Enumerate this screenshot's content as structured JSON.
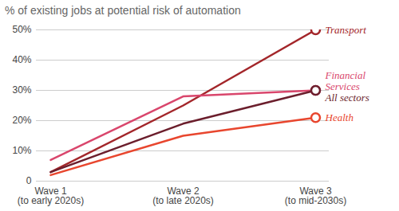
{
  "chart_data": {
    "type": "line",
    "title": "% of existing jobs at potential risk of automation",
    "categories": [
      "Wave 1\n(to early 2020s)",
      "Wave 2\n(to late 2020s)",
      "Wave 3\n(to mid-2030s)"
    ],
    "series": [
      {
        "name": "Transport",
        "color": "#a3262a",
        "values": [
          3,
          25,
          50
        ]
      },
      {
        "name": "Financial\nServices",
        "color": "#d9466c",
        "values": [
          7,
          28,
          30
        ]
      },
      {
        "name": "All sectors",
        "color": "#6b1e2c",
        "values": [
          3,
          19,
          30
        ]
      },
      {
        "name": "Health",
        "color": "#e8462e",
        "values": [
          2,
          15,
          21
        ]
      }
    ],
    "ylim": [
      0,
      50
    ],
    "yticks": [
      0,
      {
        "value": 10,
        "label": "10%"
      },
      {
        "value": 20,
        "label": "20%"
      },
      {
        "value": 30,
        "label": "30%"
      },
      {
        "value": 40,
        "label": "40%"
      },
      {
        "value": 50,
        "label": "50%"
      }
    ],
    "grid": true,
    "legend": "right"
  }
}
